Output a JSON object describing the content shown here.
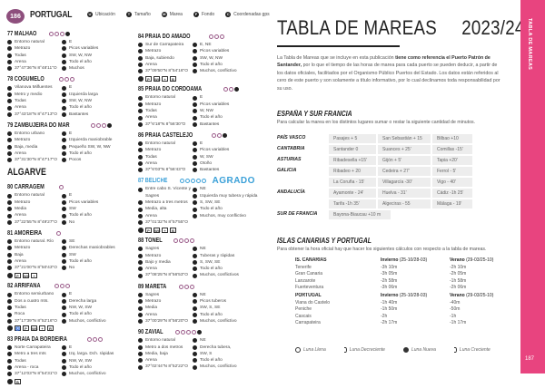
{
  "header": {
    "page_number": "186",
    "brand": "PORTUGAL",
    "legend": [
      {
        "letter": "U",
        "label": "Ubicación"
      },
      {
        "letter": "T",
        "label": "Tamaño"
      },
      {
        "letter": "M",
        "label": "Marea"
      },
      {
        "letter": "F",
        "label": "Fondo"
      },
      {
        "letter": "C",
        "label": "Coordenadas gps"
      }
    ]
  },
  "left_column": [
    {
      "num": "77",
      "name": "MALHAO",
      "rating": 3,
      "extra": true,
      "left": [
        "Entorno natural",
        "Metrazo",
        "Todas",
        "Arena",
        "37°47'36\"N 8°48'11\"O"
      ],
      "right": [
        "E",
        "Picos variables",
        "SW, W, NW",
        "Todo el año",
        "Muchos"
      ],
      "icons": []
    },
    {
      "num": "78",
      "name": "COGUMELO",
      "rating": 3,
      "extra": false,
      "left": [
        "Vilanova Milfuentes",
        "Metro y medio",
        "Todas",
        "Arena",
        "37°43'18\"N 8°47'13\"O"
      ],
      "right": [
        "E",
        "Izquierda larga",
        "SW, W, NW",
        "Todo el año",
        "Bastantes"
      ],
      "icons": []
    },
    {
      "num": "79",
      "name": "ZAMBUJEIRA DO MAR",
      "rating": 3,
      "extra": true,
      "left": [
        "Entorno urbano",
        "Metrazo",
        "Baja, media",
        "Arena",
        "37°31'30\"N 8°47'17\"O"
      ],
      "right": [
        "E",
        "Izquierda maniobrable",
        "Pequeño SW, W, NW",
        "Todo el año",
        "Pocos"
      ],
      "icons": []
    },
    {
      "region": "ALGARVE"
    },
    {
      "num": "80",
      "name": "CARRAGEM",
      "rating": 1,
      "extra": false,
      "left": [
        "Entorno natural",
        "Metrazo",
        "Media",
        "Arena",
        "37°22'55\"N 8°49'27\"O"
      ],
      "right": [
        "E",
        "Picos variables",
        "SW",
        "Todo el año",
        "No"
      ],
      "icons": []
    },
    {
      "num": "81",
      "name": "AMOREIRA",
      "rating": 1,
      "extra": false,
      "left": [
        "Entorno natural. Río",
        "Metrazo",
        "Baja",
        "Arena",
        "37°21'00\"N 8°50'43\"O"
      ],
      "right": [
        "SE",
        "Derechas maniobrables",
        "SW",
        "Todo el año",
        "No"
      ],
      "icons": [
        "P",
        "WC",
        "+"
      ]
    },
    {
      "num": "82",
      "name": "ARRIFANA",
      "rating": 3,
      "extra": false,
      "left": [
        "Entorno semiurbano",
        "Dos a cuatro mts.",
        "Todas",
        "Roca",
        "37°17'39\"N 8°52'16\"O"
      ],
      "right": [
        "E",
        "Derecha larga",
        "NW, W, SW",
        "Todo el año",
        "Muchos, conflictivo"
      ],
      "icons": [
        "♿",
        "P",
        "WC",
        "+",
        "R"
      ]
    },
    {
      "num": "83",
      "name": "PRAIA DA BORDEIRA",
      "rating": 3,
      "extra": false,
      "left": [
        "Norte Carrapateira",
        "Metro a tres mts",
        "Todas",
        "Arena - roca",
        "37°12'03\"N 8°54'31\"O"
      ],
      "right": [
        "E",
        "Izq. larga. Dch. rápidas",
        "NW, W, SW",
        "Todo el año",
        "Muchos, conflictivo"
      ],
      "icons": [
        "B"
      ]
    }
  ],
  "middle_column": [
    {
      "num": "84",
      "name": "PRAIA DO AMADO",
      "rating": 3,
      "extra": false,
      "left": [
        "Sur de Carrapateira",
        "Metrazo",
        "Baja, subiendo",
        "Arena",
        "37°09'50\"N 8°54'16\"O"
      ],
      "right": [
        "E, NE",
        "Picos variables",
        "SW, W, NW",
        "Todo el año",
        "Muchos, conflictivo"
      ],
      "icons": [
        "P",
        "WC",
        "+",
        "B"
      ]
    },
    {
      "num": "85",
      "name": "PRAIA DO CORDOAMA",
      "rating": 2,
      "extra": true,
      "left": [
        "Entorno natural",
        "Metrazo",
        "Todas",
        "Arena",
        "37°6'18\"N 8°56'30\"O"
      ],
      "right": [
        "E",
        "Picos variables",
        "W, NW",
        "Todo el año",
        "Bastantes"
      ],
      "icons": []
    },
    {
      "num": "86",
      "name": "PRAIA CASTELEJO",
      "rating": 2,
      "extra": true,
      "left": [
        "Entorno natural",
        "Metrazo",
        "Todas",
        "Arena",
        "37°6'03\"N 8°56'43\"O"
      ],
      "right": [
        "E",
        "Picos variables",
        "W, SW",
        "Otoño",
        "Bastantes"
      ],
      "icons": []
    },
    {
      "num": "87",
      "name": "BELICHE",
      "rating": 5,
      "extra": false,
      "highlight": true,
      "badge": "AGRADO",
      "left": [
        "Entre cabo S. Vicente y Sagres",
        "Metrazo a tres metros",
        "Media, alta",
        "Arena",
        "37°01'32\"N 8°57'55\"O"
      ],
      "right": [
        "NE",
        "Izquierda muy tubera y rápida",
        "S, SW, SE",
        "Todo el año",
        "Muchos, muy conflictivo"
      ],
      "icons": [
        "P",
        "WC",
        "+",
        "B"
      ]
    },
    {
      "num": "88",
      "name": "TONEL",
      "rating": 4,
      "extra": false,
      "left": [
        "Sagres",
        "Metrazo",
        "Bajo y media",
        "Arena",
        "37°08'25\"N 8°56'53\"O"
      ],
      "right": [
        "NE",
        "Tuberas y rápidas",
        "S, SW, SE",
        "Todo el año",
        "Muchos, conflictivos"
      ],
      "icons": []
    },
    {
      "num": "89",
      "name": "MARETA",
      "rating": 3,
      "extra": false,
      "left": [
        "Sagres",
        "Metrazo",
        "Media",
        "Arena",
        "37°00'29\"N 8°56'20\"O"
      ],
      "right": [
        "NE",
        "Picos tuberos",
        "SW, S, SE",
        "Todo el año",
        "Muchos, conflictivo"
      ],
      "icons": []
    },
    {
      "num": "90",
      "name": "ZAVIAL",
      "rating": 4,
      "extra": true,
      "left": [
        "Entorno natural",
        "Metro a dos metros",
        "Media, baja",
        "Arena",
        "37°02'44\"N 8°52'22\"O"
      ],
      "right": [
        "NE",
        "Derecha tubera,",
        "SW, S",
        "Todo el año",
        "Muchos, conflictivo"
      ],
      "icons": []
    }
  ],
  "tides": {
    "title": "TABLA DE MAREAS",
    "year": "2023/24",
    "intro_1": "La Tabla de Mareas que se incluye en esta publicación ",
    "intro_bold": "tiene como referencia el Puerto Patrón de Santander,",
    "intro_2": " por lo que el tiempo de las horas de marea para cada puerto se pueden deducir, a partir de los datos oficiales, facilitados por el Organismo Público Puertos del Estado. Los datos están referidos al cero de este puerto y son solamente a título informativo, por lo cual declinamos toda responsabilidad por su uso.",
    "spain_title": "ESPAÑA Y SUR FRANCIA",
    "spain_sub": "Para calcular la marea en los distintos lugares sumar o restar la siguiente cantidad de minutos.",
    "spain_rows": [
      {
        "label": "PAÍS VASCO",
        "cells": [
          "Pasajes + 5",
          "San Sebastián + 15",
          "Bilbao +10"
        ]
      },
      {
        "label": "CANTABRIA",
        "cells": [
          "Santander 0",
          "Suances + 25'",
          "Comillas -15'"
        ]
      },
      {
        "label": "ASTURIAS",
        "cells": [
          "Ribadesella +15'",
          "Gijón + 5'",
          "Tapia +20'"
        ]
      },
      {
        "label": "GALICIA",
        "cells": [
          "Ribadeo + 20",
          "Cedeira + 27'",
          "Ferrol - 5'"
        ]
      },
      {
        "label": "",
        "cells": [
          "La Coruña - 15'",
          "Villagarcía -30'",
          "Vigo - 40'"
        ]
      },
      {
        "label": "ANDALUCÍA",
        "cells": [
          "Ayamonte - 24'",
          "Huelva - 31'",
          "Cádiz -1h 25'"
        ]
      },
      {
        "label": "",
        "cells": [
          "Tarifa -1h 35'",
          "Algeciras - 55",
          "Málaga - 19'"
        ]
      },
      {
        "label": "SUR DE FRANCIA",
        "cells": [
          "Bayona-Biaucau +10 m"
        ]
      }
    ],
    "islands_title": "ISLAS CANARIAS Y PORTUGAL",
    "islands_sub": "Para obtener la hora oficial hay que hacer los siguientes cálculos con respecto a la tabla de mareas.",
    "groups": [
      {
        "name": "IS. CANARIAS",
        "winter_bold": "Invierno",
        "winter_range": " (25-10/28-03)",
        "summer_bold": "Verano",
        "summer_range": " (29-03/25-10)",
        "rows": [
          [
            "Tenerife",
            "-3h 10m",
            "-2h 10m"
          ],
          [
            "Gran Canaria",
            "-3h 05m",
            "-2h 05m"
          ],
          [
            "Lanzarote",
            "-2h 58m",
            "-1h 58m"
          ],
          [
            "Fuerteventura",
            "-3h 06m",
            "-2h 06m"
          ]
        ]
      },
      {
        "name": "PORTUGAL",
        "winter_bold": "Invierno",
        "winter_range": " (25-10/28-03)",
        "summer_bold": "Verano",
        "summer_range": " (29-03/25-10)",
        "rows": [
          [
            "Viana do Castelo",
            "-1h 40m",
            "-40m"
          ],
          [
            "Peniche",
            "-1h 50m",
            "-50m"
          ],
          [
            "Cascais",
            "-2h",
            "-1h"
          ],
          [
            "Carrapateira",
            "-2h 17m",
            "-1h 17m"
          ]
        ]
      }
    ],
    "moons": [
      {
        "type": "full",
        "label": "Luna Llena"
      },
      {
        "type": "waning",
        "label": "Luna Decreciente"
      },
      {
        "type": "new",
        "label": "Luna Nueva"
      },
      {
        "type": "waxing",
        "label": "Luna Creciente"
      }
    ]
  },
  "sidebar": {
    "vertical_title": "TABLA DE MAREAS",
    "page_number": "187",
    "color": "#e8447f"
  }
}
